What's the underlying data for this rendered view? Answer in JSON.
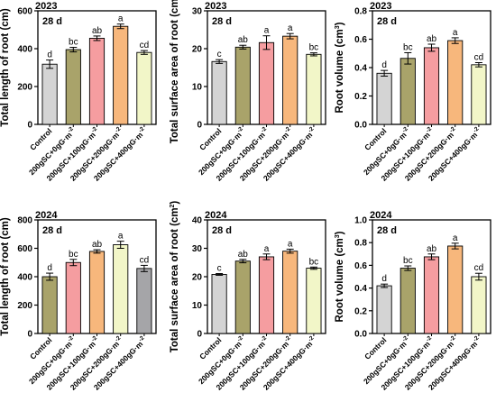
{
  "figure": {
    "panels": [
      {
        "id": "p2023_length",
        "year": "2023",
        "day_label": "28 d",
        "ylabel": "Total length of root (cm)"
      },
      {
        "id": "p2023_surface",
        "year": "2023",
        "day_label": "28 d",
        "ylabel": "Total surface area of root (cm²)"
      },
      {
        "id": "p2023_volume",
        "year": "2023",
        "day_label": "28 d",
        "ylabel": "Root volume (cm³)"
      },
      {
        "id": "p2024_length",
        "year": "2024",
        "day_label": "28 d",
        "ylabel": "Total length of root (cm)"
      },
      {
        "id": "p2024_surface",
        "year": "2024",
        "day_label": "28 d",
        "ylabel": "Total surface area of root (cm²)"
      },
      {
        "id": "p2024_volume",
        "year": "2024",
        "day_label": "28 d",
        "ylabel": "Root volume (cm³)"
      }
    ]
  },
  "chart_data": [
    {
      "type": "bar",
      "title": "2023",
      "annotation": "28 d",
      "xlabel": "",
      "ylabel": "Total length of root (cm)",
      "categories": [
        "Control",
        "200gSC+0gG·m⁻²",
        "200gSC+100gG·m⁻²",
        "200gSC+200gG·m⁻²",
        "200gSC+400gG·m⁻²"
      ],
      "values": [
        318,
        395,
        455,
        518,
        380
      ],
      "errors": [
        22,
        12,
        12,
        12,
        10
      ],
      "significance_letters": [
        "d",
        "bc",
        "ab",
        "a",
        "cd"
      ],
      "bar_colors": [
        "#d4d4d4",
        "#a9a36a",
        "#f59da0",
        "#f7b77c",
        "#f2f6c8"
      ],
      "ylim": [
        0,
        600
      ],
      "yticks": [
        0,
        200,
        400,
        600
      ],
      "grid": false
    },
    {
      "type": "bar",
      "title": "2023",
      "annotation": "28 d",
      "xlabel": "",
      "ylabel": "Total surface area of root (cm²)",
      "categories": [
        "Control",
        "200gSC+0gG·m⁻²",
        "200gSC+100gG·m⁻²",
        "200gSC+200gG·m⁻²",
        "200gSC+400gG·m⁻²"
      ],
      "values": [
        16.6,
        20.4,
        21.6,
        23.3,
        18.5
      ],
      "errors": [
        0.5,
        0.5,
        1.8,
        0.7,
        0.4
      ],
      "significance_letters": [
        "c",
        "ab",
        "a",
        "a",
        "bc"
      ],
      "bar_colors": [
        "#d4d4d4",
        "#a9a36a",
        "#f59da0",
        "#f7b77c",
        "#f2f6c8"
      ],
      "ylim": [
        0,
        30
      ],
      "yticks": [
        0,
        10,
        20,
        30
      ],
      "grid": false
    },
    {
      "type": "bar",
      "title": "2023",
      "annotation": "28 d",
      "xlabel": "",
      "ylabel": "Root volume (cm³)",
      "categories": [
        "Control",
        "200gSC+0gG·m⁻²",
        "200gSC+100gG·m⁻²",
        "200gSC+200gG·m⁻²",
        "200gSC+400gG·m⁻²"
      ],
      "values": [
        0.36,
        0.465,
        0.54,
        0.59,
        0.42
      ],
      "errors": [
        0.02,
        0.04,
        0.025,
        0.02,
        0.015
      ],
      "significance_letters": [
        "d",
        "bc",
        "ab",
        "a",
        "cd"
      ],
      "bar_colors": [
        "#d4d4d4",
        "#a9a36a",
        "#f59da0",
        "#f7b77c",
        "#f2f6c8"
      ],
      "ylim": [
        0.0,
        0.8
      ],
      "yticks": [
        0.0,
        0.2,
        0.4,
        0.6,
        0.8
      ],
      "grid": false
    },
    {
      "type": "bar",
      "title": "2024",
      "annotation": "28 d",
      "xlabel": "",
      "ylabel": "Total length of root (cm)",
      "categories": [
        "Control",
        "200gSC+0gG·m⁻²",
        "200gSC+100gG·m⁻²",
        "200gSC+200gG·m⁻²",
        "200gSC+400gG·m⁻²"
      ],
      "values": [
        400,
        500,
        578,
        625,
        458
      ],
      "errors": [
        25,
        22,
        12,
        25,
        22
      ],
      "significance_letters": [
        "d",
        "bc",
        "ab",
        "a",
        "cd"
      ],
      "bar_colors": [
        "#a9a36a",
        "#f59da0",
        "#f7b77c",
        "#f2f6c8",
        "#a5a5a8"
      ],
      "ylim": [
        0,
        800
      ],
      "yticks": [
        0,
        200,
        400,
        600,
        800
      ],
      "grid": false
    },
    {
      "type": "bar",
      "title": "2024",
      "annotation": "28 d",
      "xlabel": "",
      "ylabel": "Total surface area of root (cm²)",
      "categories": [
        "Control",
        "200gSC+0gG·m⁻²",
        "200gSC+100gG·m⁻²",
        "200gSC+200gG·m⁻²",
        "200gSC+400gG·m⁻²"
      ],
      "values": [
        20.8,
        25.5,
        27.0,
        29.0,
        23.0
      ],
      "errors": [
        0.3,
        0.6,
        1.0,
        0.7,
        0.4
      ],
      "significance_letters": [
        "c",
        "ab",
        "a",
        "a",
        "bc"
      ],
      "bar_colors": [
        "#d4d4d4",
        "#a9a36a",
        "#f59da0",
        "#f7b77c",
        "#f2f6c8"
      ],
      "ylim": [
        0,
        40
      ],
      "yticks": [
        0,
        10,
        20,
        30,
        40
      ],
      "grid": false
    },
    {
      "type": "bar",
      "title": "2024",
      "annotation": "28 d",
      "xlabel": "",
      "ylabel": "Root volume (cm³)",
      "categories": [
        "Control",
        "200gSC+0gG·m⁻²",
        "200gSC+100gG·m⁻²",
        "200gSC+200gG·m⁻²",
        "200gSC+400gG·m⁻²"
      ],
      "values": [
        0.42,
        0.575,
        0.675,
        0.77,
        0.5
      ],
      "errors": [
        0.015,
        0.02,
        0.025,
        0.025,
        0.03
      ],
      "significance_letters": [
        "d",
        "bc",
        "ab",
        "a",
        "cd"
      ],
      "bar_colors": [
        "#d4d4d4",
        "#a9a36a",
        "#f59da0",
        "#f7b77c",
        "#f2f6c8"
      ],
      "ylim": [
        0.0,
        1.0
      ],
      "yticks": [
        0.0,
        0.2,
        0.4,
        0.6,
        0.8,
        1.0
      ],
      "grid": false
    }
  ]
}
